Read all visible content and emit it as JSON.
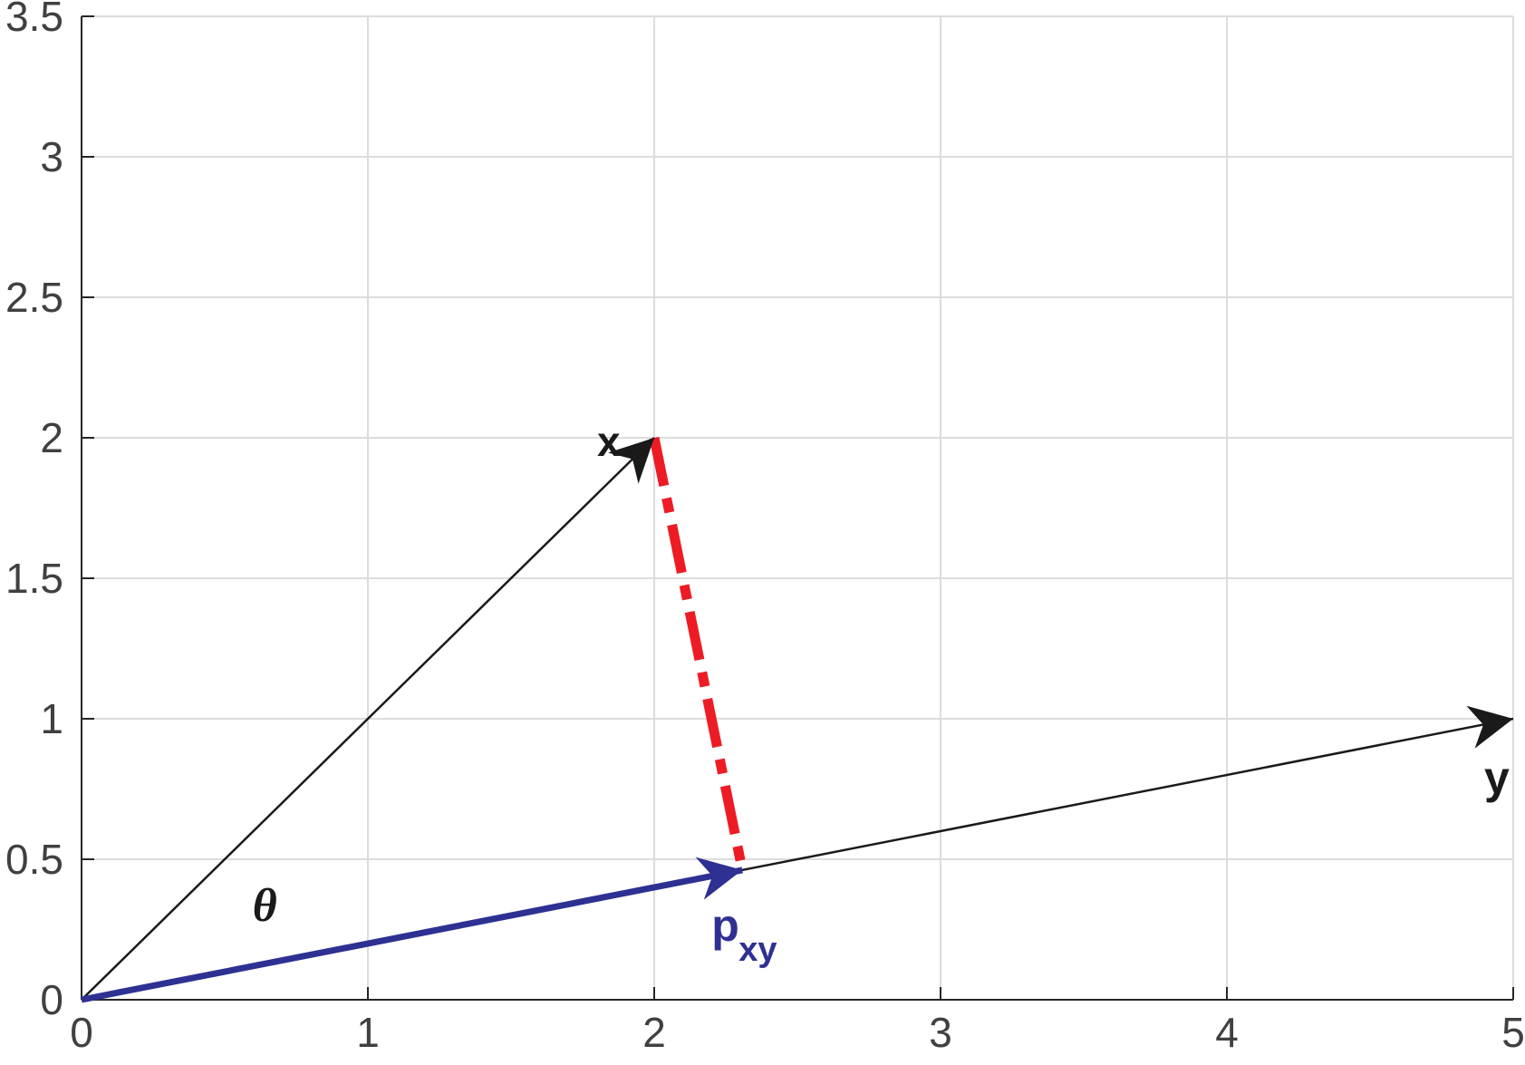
{
  "chart_data": {
    "type": "line",
    "xlim": [
      0,
      5
    ],
    "ylim": [
      0,
      3.5
    ],
    "x_ticks": [
      "0",
      "1",
      "2",
      "3",
      "4",
      "5"
    ],
    "y_ticks": [
      "0",
      "0.5",
      "1",
      "1.5",
      "2",
      "2.5",
      "3",
      "3.5"
    ],
    "grid": true,
    "vectors": [
      {
        "label": "x",
        "from": [
          0,
          0
        ],
        "to": [
          2,
          2
        ],
        "color": "#1a1a1a"
      },
      {
        "label": "y",
        "from": [
          0,
          0
        ],
        "to": [
          5,
          1
        ],
        "color": "#1a1a1a"
      },
      {
        "label": "p",
        "label_subscript": "xy",
        "from": [
          0,
          0
        ],
        "to": [
          2.3077,
          0.4615
        ],
        "color": "#2e3192"
      }
    ],
    "projection_line": {
      "from": [
        2,
        2
      ],
      "to": [
        2.3077,
        0.4615
      ],
      "style": "dashed",
      "color": "#ed1c24"
    },
    "angle_label": "θ",
    "angle_label_pos": [
      0.64,
      0.28
    ]
  }
}
